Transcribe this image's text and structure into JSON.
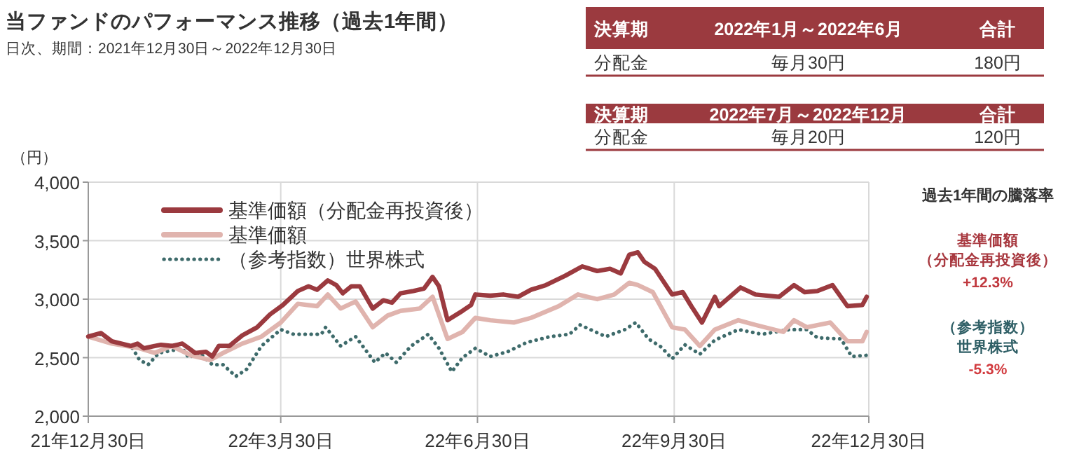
{
  "chart_data": [
    {
      "type": "line",
      "title": "当ファンドのパフォーマンス推移（過去1年間）",
      "subtitle": "日次、期間：2021年12月30日～2022年12月30日",
      "ylabel": "（円）",
      "xlim": [
        "2021-12-30",
        "2022-12-30"
      ],
      "xticks": [
        {
          "value": "2021-12-30",
          "label": "21年12月30日"
        },
        {
          "value": "2022-03-30",
          "label": "22年3月30日"
        },
        {
          "value": "2022-06-30",
          "label": "22年6月30日"
        },
        {
          "value": "2022-09-30",
          "label": "22年9月30日"
        },
        {
          "value": "2022-12-30",
          "label": "22年12月30日"
        }
      ],
      "ylim": [
        2000,
        4000
      ],
      "yticks": [
        {
          "value": 2000,
          "label": "2,000"
        },
        {
          "value": 2500,
          "label": "2,500"
        },
        {
          "value": 3000,
          "label": "3,000"
        },
        {
          "value": 3500,
          "label": "3,500"
        },
        {
          "value": 4000,
          "label": "4,000"
        }
      ],
      "grid": true,
      "legend": "top left",
      "marker": "none",
      "series": [
        {
          "name": "基準価額（分配金再投資後）",
          "color": "#9b3a3f",
          "line_style": "solid",
          "x": [
            "2021-12-30",
            "2022-01-05",
            "2022-01-10",
            "2022-01-19",
            "2022-01-22",
            "2022-01-25",
            "2022-01-30",
            "2022-02-02",
            "2022-02-07",
            "2022-02-12",
            "2022-02-15",
            "2022-02-18",
            "2022-02-23",
            "2022-02-26",
            "2022-03-01",
            "2022-03-06",
            "2022-03-12",
            "2022-03-19",
            "2022-03-25",
            "2022-03-31",
            "2022-04-07",
            "2022-04-12",
            "2022-04-16",
            "2022-04-21",
            "2022-04-25",
            "2022-04-28",
            "2022-05-02",
            "2022-05-06",
            "2022-05-12",
            "2022-05-17",
            "2022-05-21",
            "2022-05-25",
            "2022-05-31",
            "2022-06-05",
            "2022-06-09",
            "2022-06-12",
            "2022-06-16",
            "2022-06-23",
            "2022-06-27",
            "2022-06-29",
            "2022-07-06",
            "2022-07-12",
            "2022-07-19",
            "2022-07-25",
            "2022-08-01",
            "2022-08-10",
            "2022-08-18",
            "2022-08-25",
            "2022-08-31",
            "2022-09-05",
            "2022-09-09",
            "2022-09-13",
            "2022-09-16",
            "2022-09-21",
            "2022-09-29",
            "2022-10-04",
            "2022-10-08",
            "2022-10-13",
            "2022-10-19",
            "2022-10-21",
            "2022-10-31",
            "2022-11-07",
            "2022-11-18",
            "2022-11-25",
            "2022-11-30",
            "2022-12-06",
            "2022-12-13",
            "2022-12-20",
            "2022-12-27",
            "2022-12-29"
          ],
          "values": [
            2680,
            2710,
            2640,
            2600,
            2620,
            2580,
            2600,
            2610,
            2600,
            2620,
            2580,
            2540,
            2550,
            2510,
            2600,
            2600,
            2690,
            2760,
            2870,
            2950,
            3070,
            3110,
            3080,
            3160,
            3120,
            3050,
            3110,
            3110,
            2920,
            2990,
            2970,
            3050,
            3070,
            3090,
            3190,
            3110,
            2820,
            2900,
            2950,
            3040,
            3030,
            3040,
            3020,
            3080,
            3120,
            3200,
            3280,
            3240,
            3260,
            3220,
            3380,
            3400,
            3320,
            3260,
            3040,
            3060,
            2940,
            2800,
            3020,
            2940,
            3100,
            3040,
            3020,
            3120,
            3060,
            3070,
            3120,
            2940,
            2950,
            3020
          ]
        },
        {
          "name": "基準価額",
          "color": "#e0b4ae",
          "line_style": "solid",
          "x": [
            "2021-12-30",
            "2022-01-10",
            "2022-01-23",
            "2022-01-30",
            "2022-02-07",
            "2022-02-16",
            "2022-02-25",
            "2022-03-03",
            "2022-03-12",
            "2022-03-21",
            "2022-03-30",
            "2022-04-07",
            "2022-04-16",
            "2022-04-21",
            "2022-04-27",
            "2022-05-04",
            "2022-05-12",
            "2022-05-19",
            "2022-05-25",
            "2022-06-03",
            "2022-06-09",
            "2022-06-16",
            "2022-06-23",
            "2022-06-29",
            "2022-07-06",
            "2022-07-17",
            "2022-07-25",
            "2022-08-07",
            "2022-08-16",
            "2022-08-25",
            "2022-09-02",
            "2022-09-09",
            "2022-09-13",
            "2022-09-20",
            "2022-09-29",
            "2022-10-05",
            "2022-10-12",
            "2022-10-19",
            "2022-10-30",
            "2022-11-07",
            "2022-11-20",
            "2022-11-25",
            "2022-12-01",
            "2022-12-12",
            "2022-12-20",
            "2022-12-27",
            "2022-12-29"
          ],
          "values": [
            2680,
            2620,
            2580,
            2540,
            2600,
            2520,
            2480,
            2540,
            2620,
            2680,
            2800,
            2960,
            2940,
            3040,
            2920,
            2980,
            2760,
            2860,
            2900,
            2920,
            3020,
            2660,
            2720,
            2840,
            2820,
            2800,
            2840,
            2940,
            3040,
            3000,
            3040,
            3140,
            3120,
            3060,
            2760,
            2740,
            2600,
            2740,
            2820,
            2780,
            2720,
            2820,
            2760,
            2800,
            2640,
            2640,
            2720
          ]
        },
        {
          "name": "（参考指数）世界株式",
          "color": "#3e6b6b",
          "line_style": "dotted",
          "x": [
            "2021-12-30",
            "2022-01-05",
            "2022-01-10",
            "2022-01-19",
            "2022-01-23",
            "2022-01-27",
            "2022-02-01",
            "2022-02-07",
            "2022-02-12",
            "2022-02-15",
            "2022-02-20",
            "2022-02-26",
            "2022-03-03",
            "2022-03-09",
            "2022-03-14",
            "2022-03-21",
            "2022-03-30",
            "2022-04-05",
            "2022-04-18",
            "2022-04-20",
            "2022-04-27",
            "2022-05-04",
            "2022-05-13",
            "2022-05-18",
            "2022-05-23",
            "2022-05-30",
            "2022-06-07",
            "2022-06-12",
            "2022-06-18",
            "2022-06-23",
            "2022-06-29",
            "2022-07-06",
            "2022-07-14",
            "2022-07-23",
            "2022-08-03",
            "2022-08-12",
            "2022-08-17",
            "2022-08-29",
            "2022-09-07",
            "2022-09-12",
            "2022-09-18",
            "2022-09-24",
            "2022-09-29",
            "2022-10-05",
            "2022-10-12",
            "2022-10-19",
            "2022-10-30",
            "2022-11-10",
            "2022-11-23",
            "2022-12-01",
            "2022-12-06",
            "2022-12-17",
            "2022-12-22",
            "2022-12-29"
          ],
          "values": [
            2680,
            2700,
            2640,
            2600,
            2480,
            2440,
            2540,
            2560,
            2580,
            2500,
            2540,
            2440,
            2440,
            2340,
            2400,
            2600,
            2740,
            2700,
            2700,
            2760,
            2600,
            2680,
            2460,
            2540,
            2460,
            2600,
            2700,
            2580,
            2380,
            2500,
            2580,
            2510,
            2550,
            2630,
            2680,
            2700,
            2780,
            2680,
            2740,
            2800,
            2660,
            2590,
            2490,
            2610,
            2530,
            2650,
            2740,
            2700,
            2740,
            2740,
            2670,
            2660,
            2510,
            2520
          ]
        }
      ],
      "annotations": [
        "過去1年間の騰落率",
        "基準価額",
        "（分配金再投資後）",
        "+12.3%",
        "（参考指数）",
        "世界株式",
        "-5.3%"
      ]
    },
    {
      "type": "other",
      "annotations": [
        "決算期",
        "2022年1月～2022年6月",
        "合計",
        "分配金",
        "毎月30円",
        "180円",
        "決算期",
        "2022年7月～2022年12月",
        "合計",
        "分配金",
        "毎月20円",
        "120円"
      ]
    }
  ]
}
